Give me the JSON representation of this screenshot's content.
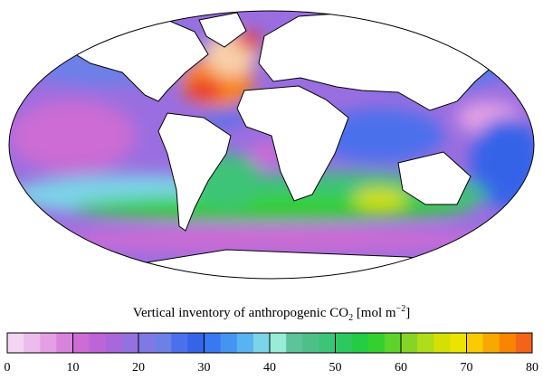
{
  "colorbar": {
    "title": {
      "text": "Vertical inventory of anthropogenic CO",
      "sub": "2",
      "unit": " [mol m",
      "sup": "−2",
      "end": "]"
    },
    "lim": [
      0,
      80
    ],
    "ticks": [
      0,
      10,
      20,
      30,
      40,
      50,
      60,
      70,
      80
    ],
    "colors": [
      "#f4d6f4",
      "#ecbcec",
      "#e4a0e4",
      "#d884dc",
      "#cc6cd4",
      "#bc64d8",
      "#a868dc",
      "#9470e0",
      "#8078e4",
      "#6c80e8",
      "#4c70ec",
      "#3464e8",
      "#3878f0",
      "#4494f0",
      "#58b4f0",
      "#7cd4e8",
      "#98ecd8",
      "#5cc498",
      "#4cc088",
      "#3cc478",
      "#2cc860",
      "#24cc44",
      "#34d030",
      "#5cd42c",
      "#88d424",
      "#b0dc18",
      "#d4e004",
      "#ece400",
      "#f8cc00",
      "#f8a800",
      "#f88400",
      "#f46418"
    ]
  }
}
